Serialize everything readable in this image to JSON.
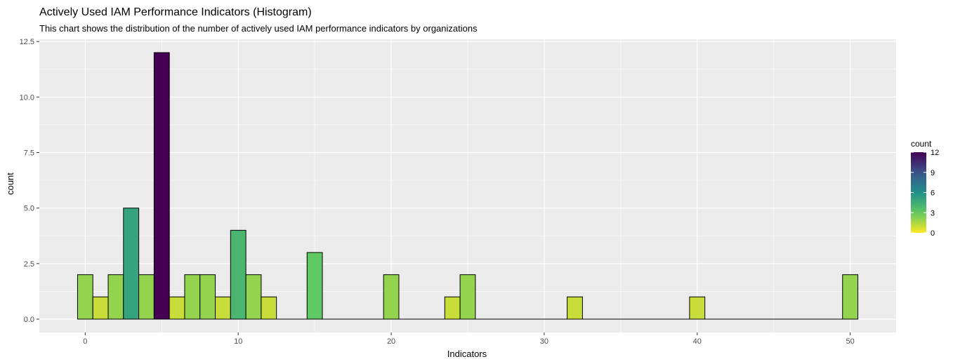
{
  "chart_data": {
    "type": "bar",
    "title": "Actively Used IAM Performance Indicators (Histogram)",
    "subtitle": "This chart shows the distribution of the number of actively used IAM performance indicators by organizations",
    "xlabel": "Indicators",
    "ylabel": "count",
    "xlim": [
      -3,
      53
    ],
    "ylim": [
      -0.6,
      12.6
    ],
    "x_ticks": [
      0,
      10,
      20,
      30,
      40,
      50
    ],
    "y_ticks": [
      0.0,
      2.5,
      5.0,
      7.5,
      10.0,
      12.5
    ],
    "y_tick_labels": [
      "0.0",
      "2.5",
      "5.0",
      "7.5",
      "10.0",
      "12.5"
    ],
    "bin_width": 1,
    "grid": true,
    "bins": [
      {
        "x": 0,
        "count": 2
      },
      {
        "x": 1,
        "count": 1
      },
      {
        "x": 2,
        "count": 2
      },
      {
        "x": 3,
        "count": 5
      },
      {
        "x": 4,
        "count": 2
      },
      {
        "x": 5,
        "count": 12
      },
      {
        "x": 6,
        "count": 1
      },
      {
        "x": 7,
        "count": 2
      },
      {
        "x": 8,
        "count": 2
      },
      {
        "x": 9,
        "count": 1
      },
      {
        "x": 10,
        "count": 4
      },
      {
        "x": 11,
        "count": 2
      },
      {
        "x": 12,
        "count": 1
      },
      {
        "x": 13,
        "count": 0
      },
      {
        "x": 14,
        "count": 0
      },
      {
        "x": 15,
        "count": 3
      },
      {
        "x": 16,
        "count": 0
      },
      {
        "x": 17,
        "count": 0
      },
      {
        "x": 18,
        "count": 0
      },
      {
        "x": 19,
        "count": 0
      },
      {
        "x": 20,
        "count": 2
      },
      {
        "x": 21,
        "count": 0
      },
      {
        "x": 22,
        "count": 0
      },
      {
        "x": 23,
        "count": 0
      },
      {
        "x": 24,
        "count": 1
      },
      {
        "x": 25,
        "count": 2
      },
      {
        "x": 26,
        "count": 0
      },
      {
        "x": 27,
        "count": 0
      },
      {
        "x": 28,
        "count": 0
      },
      {
        "x": 29,
        "count": 0
      },
      {
        "x": 30,
        "count": 0
      },
      {
        "x": 31,
        "count": 0
      },
      {
        "x": 32,
        "count": 1
      },
      {
        "x": 33,
        "count": 0
      },
      {
        "x": 34,
        "count": 0
      },
      {
        "x": 35,
        "count": 0
      },
      {
        "x": 36,
        "count": 0
      },
      {
        "x": 37,
        "count": 0
      },
      {
        "x": 38,
        "count": 0
      },
      {
        "x": 39,
        "count": 0
      },
      {
        "x": 40,
        "count": 1
      },
      {
        "x": 41,
        "count": 0
      },
      {
        "x": 42,
        "count": 0
      },
      {
        "x": 43,
        "count": 0
      },
      {
        "x": 44,
        "count": 0
      },
      {
        "x": 45,
        "count": 0
      },
      {
        "x": 46,
        "count": 0
      },
      {
        "x": 47,
        "count": 0
      },
      {
        "x": 48,
        "count": 0
      },
      {
        "x": 49,
        "count": 0
      },
      {
        "x": 50,
        "count": 2
      }
    ],
    "legend": {
      "title": "count",
      "position": "right",
      "range": [
        0,
        12
      ],
      "ticks": [
        0,
        3,
        6,
        9,
        12
      ],
      "colormap": "viridis (reversed)"
    },
    "colors": {
      "panel_background": "#ebebeb",
      "grid": "#ffffff",
      "bar_outline": "#000000",
      "scale_low": "#fde725",
      "scale_high": "#440154"
    }
  }
}
